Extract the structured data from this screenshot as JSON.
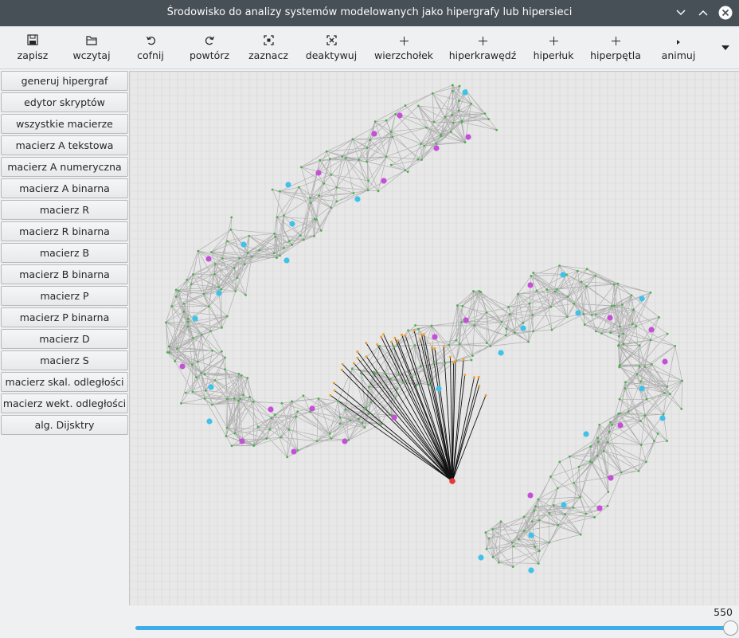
{
  "window": {
    "title": "Środowisko do analizy systemów modelowanych jako hipergrafy lub hipersieci"
  },
  "toolbar": {
    "items": [
      {
        "label": "zapisz",
        "icon": "save-icon"
      },
      {
        "label": "wczytaj",
        "icon": "folder-icon"
      },
      {
        "label": "cofnij",
        "icon": "undo-icon"
      },
      {
        "label": "powtórz",
        "icon": "redo-icon"
      },
      {
        "label": "zaznacz",
        "icon": "select-icon"
      },
      {
        "label": "deaktywuj",
        "icon": "deactivate-icon"
      },
      {
        "label": "wierzchołek",
        "icon": "plus-icon"
      },
      {
        "label": "hiperkrawędź",
        "icon": "plus-icon"
      },
      {
        "label": "hiperłuk",
        "icon": "plus-icon"
      },
      {
        "label": "hiperpętla",
        "icon": "plus-icon"
      },
      {
        "label": "animuj",
        "icon": "play-icon"
      }
    ],
    "overflow_icon": "chevron-down-icon"
  },
  "sidebar": {
    "buttons": [
      "generuj hipergraf",
      "edytor skryptów",
      "wszystkie macierze",
      "macierz A tekstowa",
      "macierz A numeryczna",
      "macierz A binarna",
      "macierz R",
      "macierz R binarna",
      "macierz B",
      "macierz B binarna",
      "macierz P",
      "macierz P binarna",
      "macierz D",
      "macierz S",
      "macierz skal. odległości",
      "macierz wekt. odległości",
      "alg. Dijsktry"
    ]
  },
  "slider": {
    "value": "550",
    "fraction": 1.0
  },
  "colors": {
    "titlebar": "#475057",
    "accent": "#3daee9",
    "node_small": "#4caf50",
    "node_cyan": "#3fc1e8",
    "node_magenta": "#c64fd8",
    "node_orange": "#f0a030",
    "node_selected": "#e53935",
    "edge": "#b0b0b0",
    "edge_selected": "#111111"
  }
}
